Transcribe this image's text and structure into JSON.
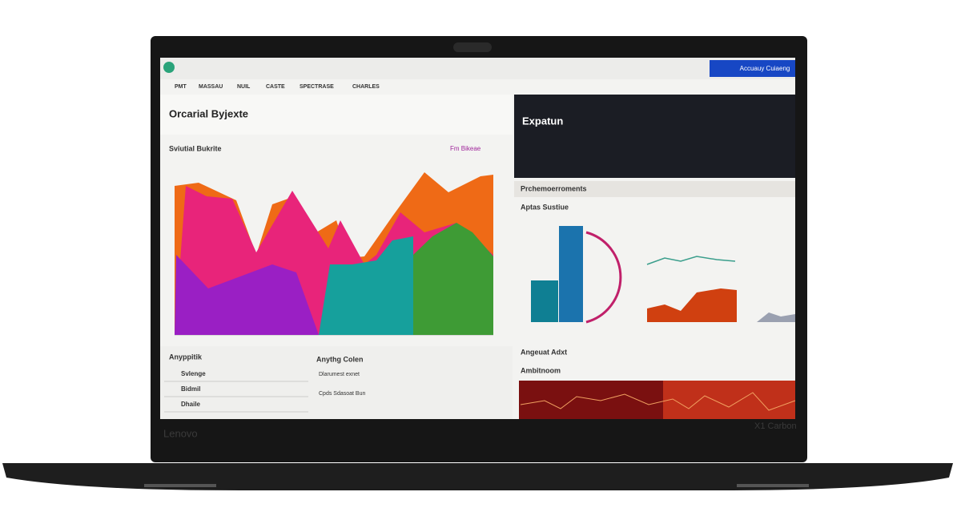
{
  "button": "Accuauy Cuiaeng",
  "tabs": [
    "PMT",
    "MASSAU",
    "NUIL",
    "CASTE",
    "SPECTRASE",
    "CHARLES"
  ],
  "main": {
    "title": "Orcarial Byjexte",
    "chart_title": "Sviutial Bukrite",
    "legend": "Fm Bikeae"
  },
  "side": {
    "title": "Expatun"
  },
  "panel": {
    "title": "Prchemoerroments",
    "subtitle": "Aptas Sustiue"
  },
  "lists": {
    "left_title": "Anyppitik",
    "left_items": [
      "Svlenge",
      "Bidmil",
      "Dhaile"
    ],
    "mid_title": "Anythg Colen",
    "mid_items": [
      "Dlarumest exnet",
      "Cpds Sdasoat Bun"
    ]
  },
  "bottom_right": {
    "title": "Angeuat Adxt",
    "subtitle": "Ambitnoom"
  },
  "brand": "Lenovo",
  "model": "X1 Carbon"
}
